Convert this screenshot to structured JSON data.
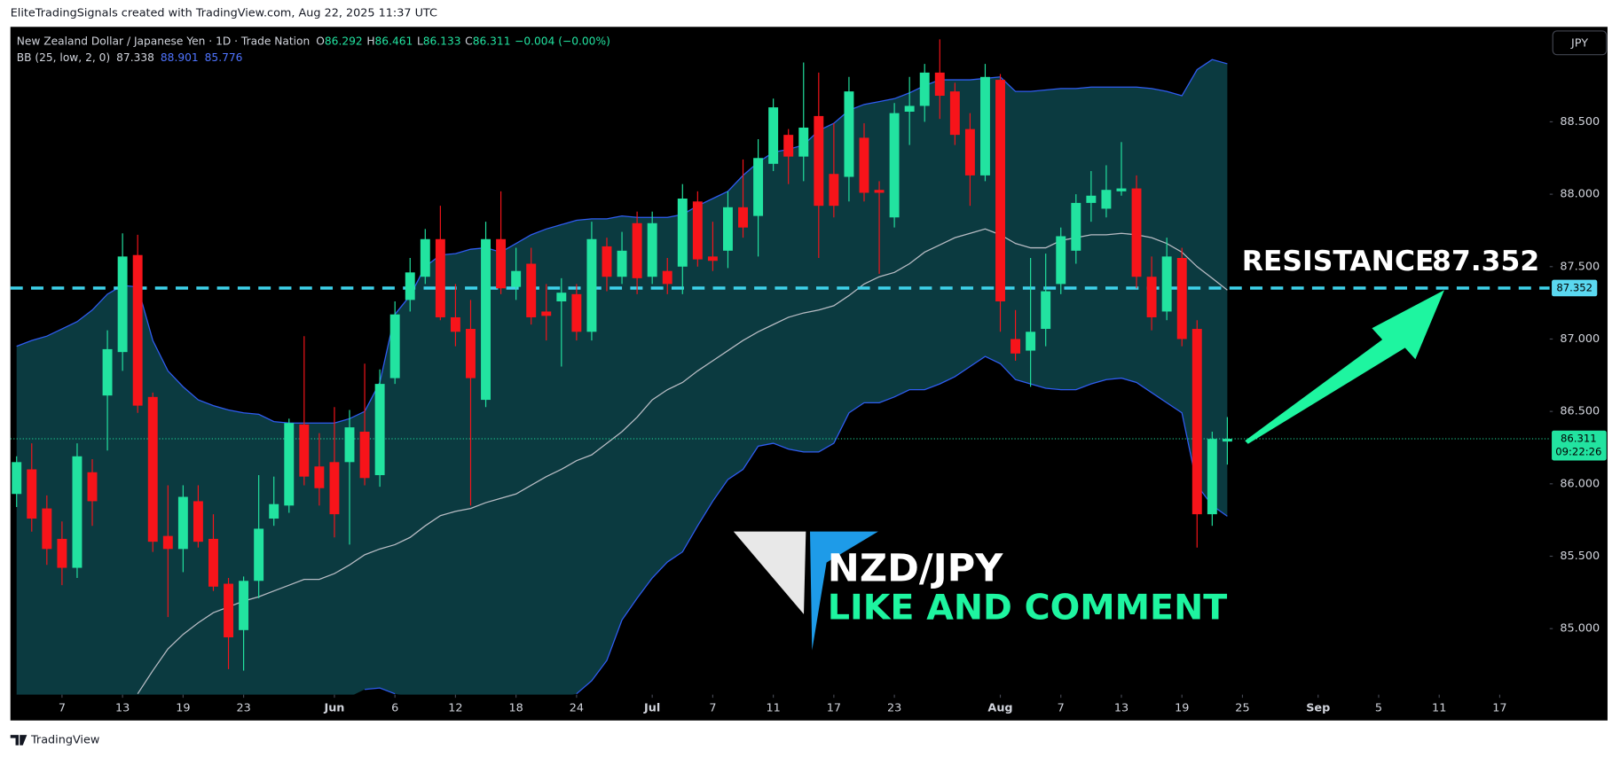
{
  "header": {
    "attribution": "EliteTradingSignals created with TradingView.com, Aug 22, 2025 11:37 UTC",
    "currency_button": "JPY",
    "footer_brand": "TradingView"
  },
  "chart_data": {
    "type": "candlestick",
    "title": "New Zealand Dollar / Japanese Yen · 1D · Trade Nation",
    "ohlc_keys": [
      "O",
      "H",
      "L",
      "C"
    ],
    "change_label": "−0.004 (−0.00%)",
    "countdown": "09:22:26",
    "up_color": "#22e3a0",
    "down_color": "#f7141a",
    "open": [
      85.93,
      86.1,
      85.83,
      85.62,
      85.42,
      86.08,
      86.61,
      86.91,
      87.58,
      86.6,
      85.64,
      85.55,
      85.88,
      85.62,
      85.31,
      84.99,
      85.33,
      85.76,
      85.85,
      86.41,
      86.12,
      86.15,
      86.15,
      86.36,
      86.06,
      86.73,
      87.27,
      87.43,
      87.69,
      87.15,
      87.07,
      86.58,
      87.69,
      87.36,
      87.52,
      87.19,
      87.26,
      87.31,
      87.05,
      87.64,
      87.43,
      87.8,
      87.43,
      87.47,
      87.5,
      87.95,
      87.57,
      87.61,
      87.91,
      87.85,
      88.21,
      88.41,
      88.26,
      88.54,
      88.14,
      88.12,
      88.39,
      88.03,
      87.84,
      88.57,
      88.61,
      88.84,
      88.71,
      88.45,
      88.13,
      88.79,
      87.0,
      86.92,
      87.07,
      87.38,
      87.61,
      87.94,
      87.9,
      88.02,
      88.04,
      87.43,
      87.19,
      87.56,
      87.07,
      85.79,
      86.292
    ],
    "high": [
      86.19,
      86.28,
      85.92,
      85.74,
      86.28,
      86.17,
      87.06,
      87.73,
      87.72,
      86.63,
      85.99,
      85.99,
      85.99,
      85.79,
      85.35,
      85.36,
      86.06,
      86.05,
      86.45,
      87.02,
      86.35,
      86.53,
      86.51,
      86.83,
      86.79,
      87.26,
      87.56,
      87.76,
      87.92,
      87.38,
      87.27,
      87.81,
      88.02,
      87.63,
      87.63,
      87.38,
      87.42,
      87.38,
      87.81,
      87.7,
      87.74,
      87.88,
      87.88,
      87.56,
      88.07,
      88.02,
      87.81,
      88.02,
      88.24,
      88.38,
      88.66,
      88.45,
      88.91,
      88.84,
      88.49,
      88.81,
      88.49,
      88.09,
      88.63,
      88.81,
      88.9,
      89.07,
      88.77,
      88.56,
      88.9,
      88.83,
      87.2,
      87.56,
      87.59,
      87.77,
      88.0,
      88.16,
      88.2,
      88.36,
      88.13,
      87.57,
      87.7,
      87.63,
      87.13,
      86.36,
      86.461
    ],
    "low": [
      85.84,
      85.67,
      85.44,
      85.3,
      85.35,
      85.71,
      86.23,
      86.78,
      86.49,
      85.53,
      85.08,
      85.39,
      85.56,
      85.26,
      84.72,
      84.71,
      85.21,
      85.71,
      85.8,
      85.99,
      85.85,
      85.63,
      85.58,
      85.99,
      85.98,
      86.69,
      87.19,
      87.38,
      87.13,
      86.95,
      85.85,
      86.53,
      87.31,
      87.27,
      87.1,
      86.99,
      86.81,
      86.99,
      86.99,
      87.33,
      87.38,
      87.31,
      87.38,
      87.31,
      87.31,
      87.5,
      87.47,
      87.49,
      87.7,
      87.57,
      88.16,
      88.07,
      88.09,
      87.56,
      87.84,
      87.95,
      87.95,
      87.45,
      87.77,
      88.34,
      88.5,
      88.52,
      88.34,
      87.92,
      88.09,
      87.05,
      86.85,
      86.67,
      86.95,
      87.31,
      87.52,
      87.81,
      87.84,
      87.99,
      87.35,
      87.06,
      87.13,
      86.95,
      85.56,
      85.71,
      86.133
    ],
    "close": [
      86.15,
      85.76,
      85.55,
      85.42,
      86.19,
      85.88,
      86.93,
      87.57,
      86.54,
      85.6,
      85.55,
      85.91,
      85.6,
      85.29,
      84.94,
      85.33,
      85.69,
      85.86,
      86.42,
      86.05,
      85.97,
      85.79,
      86.39,
      86.04,
      86.69,
      87.17,
      87.46,
      87.69,
      87.15,
      87.05,
      86.73,
      87.69,
      87.35,
      87.47,
      87.15,
      87.16,
      87.32,
      87.05,
      87.69,
      87.43,
      87.61,
      87.42,
      87.8,
      87.38,
      87.97,
      87.55,
      87.54,
      87.91,
      87.77,
      88.25,
      88.6,
      88.26,
      88.46,
      87.92,
      87.92,
      88.71,
      88.01,
      88.01,
      88.56,
      88.61,
      88.84,
      88.68,
      88.41,
      88.13,
      88.81,
      87.26,
      86.9,
      87.05,
      87.33,
      87.71,
      87.94,
      87.99,
      88.03,
      88.04,
      87.43,
      87.15,
      87.57,
      87.0,
      85.79,
      86.31,
      86.311
    ],
    "bollinger": {
      "label": "BB (25, low, 2, 0)",
      "line_color": "#2f5cf0",
      "middle_color": "#b8bcc4",
      "fill": "#0b3a40",
      "upper": [
        86.95,
        86.99,
        87.02,
        87.07,
        87.12,
        87.2,
        87.31,
        87.37,
        87.36,
        86.99,
        86.78,
        86.67,
        86.58,
        86.54,
        86.51,
        86.49,
        86.48,
        86.43,
        86.42,
        86.42,
        86.42,
        86.42,
        86.45,
        86.5,
        86.7,
        87.17,
        87.3,
        87.5,
        87.58,
        87.59,
        87.62,
        87.63,
        87.6,
        87.66,
        87.72,
        87.76,
        87.79,
        87.82,
        87.83,
        87.83,
        87.85,
        87.84,
        87.84,
        87.84,
        87.86,
        87.92,
        87.97,
        88.02,
        88.13,
        88.22,
        88.29,
        88.31,
        88.34,
        88.44,
        88.49,
        88.58,
        88.62,
        88.64,
        88.66,
        88.7,
        88.75,
        88.79,
        88.79,
        88.79,
        88.8,
        88.81,
        88.71,
        88.71,
        88.72,
        88.73,
        88.73,
        88.74,
        88.74,
        88.74,
        88.74,
        88.73,
        88.71,
        88.68,
        88.86,
        88.93,
        88.901
      ],
      "middle": [
        null,
        null,
        null,
        null,
        null,
        null,
        null,
        null,
        84.55,
        84.71,
        84.86,
        84.96,
        85.04,
        85.11,
        85.15,
        85.19,
        85.22,
        85.26,
        85.3,
        85.34,
        85.34,
        85.38,
        85.44,
        85.51,
        85.55,
        85.58,
        85.63,
        85.71,
        85.78,
        85.81,
        85.83,
        85.87,
        85.9,
        85.93,
        85.99,
        86.05,
        86.1,
        86.16,
        86.2,
        86.28,
        86.36,
        86.46,
        86.58,
        86.65,
        86.7,
        86.78,
        86.85,
        86.92,
        86.99,
        87.05,
        87.1,
        87.15,
        87.18,
        87.2,
        87.23,
        87.3,
        87.38,
        87.43,
        87.46,
        87.52,
        87.6,
        87.65,
        87.7,
        87.73,
        87.76,
        87.72,
        87.66,
        87.63,
        87.63,
        87.68,
        87.7,
        87.72,
        87.72,
        87.73,
        87.72,
        87.7,
        87.66,
        87.6,
        87.5,
        87.42,
        87.338
      ],
      "lower": [
        null,
        null,
        null,
        null,
        null,
        null,
        null,
        null,
        null,
        null,
        null,
        null,
        null,
        null,
        null,
        null,
        null,
        null,
        null,
        null,
        null,
        null,
        null,
        84.58,
        84.59,
        84.55,
        null,
        null,
        null,
        null,
        null,
        null,
        null,
        null,
        null,
        null,
        null,
        84.55,
        84.64,
        84.78,
        85.06,
        85.21,
        85.35,
        85.46,
        85.53,
        85.71,
        85.88,
        86.03,
        86.1,
        86.26,
        86.28,
        86.24,
        86.22,
        86.22,
        86.28,
        86.49,
        86.56,
        86.56,
        86.6,
        86.65,
        86.65,
        86.69,
        86.74,
        86.81,
        86.88,
        86.83,
        86.72,
        86.69,
        86.66,
        86.65,
        86.65,
        86.69,
        86.72,
        86.73,
        86.7,
        86.63,
        86.56,
        86.49,
        85.99,
        85.85,
        85.776
      ]
    },
    "resistance": {
      "label": "RESISTANCE",
      "value": 87.352,
      "color": "#3ed2ea"
    },
    "annotations": {
      "symbol": "NZD/JPY",
      "call_to_action": "LIKE AND COMMENT"
    },
    "xlim": [
      -0.41,
      101.3
    ],
    "xticks": [
      {
        "value": 3,
        "label": "7"
      },
      {
        "value": 7,
        "label": "13"
      },
      {
        "value": 11,
        "label": "19"
      },
      {
        "value": 15,
        "label": "23"
      },
      {
        "value": 21,
        "label": "Jun"
      },
      {
        "value": 25,
        "label": "6"
      },
      {
        "value": 29,
        "label": "12"
      },
      {
        "value": 33,
        "label": "18"
      },
      {
        "value": 37,
        "label": "24"
      },
      {
        "value": 42,
        "label": "Jul"
      },
      {
        "value": 46,
        "label": "7"
      },
      {
        "value": 50,
        "label": "11"
      },
      {
        "value": 54,
        "label": "17"
      },
      {
        "value": 58,
        "label": "23"
      },
      {
        "value": 65,
        "label": "Aug"
      },
      {
        "value": 69,
        "label": "7"
      },
      {
        "value": 73,
        "label": "13"
      },
      {
        "value": 77,
        "label": "19"
      },
      {
        "value": 81,
        "label": "25"
      },
      {
        "value": 86,
        "label": "Sep"
      },
      {
        "value": 90,
        "label": "5"
      },
      {
        "value": 94,
        "label": "11"
      },
      {
        "value": 98,
        "label": "17"
      }
    ],
    "ylim": [
      84.544,
      89.156
    ],
    "yticks": [
      {
        "value": 85,
        "label": "85.000"
      },
      {
        "value": 85.5,
        "label": "85.500"
      },
      {
        "value": 86,
        "label": "86.000"
      },
      {
        "value": 86.5,
        "label": "86.500"
      },
      {
        "value": 87,
        "label": "87.000"
      },
      {
        "value": 87.5,
        "label": "87.500"
      },
      {
        "value": 88,
        "label": "88.000"
      },
      {
        "value": 88.5,
        "label": "88.500"
      }
    ],
    "grid": false
  }
}
